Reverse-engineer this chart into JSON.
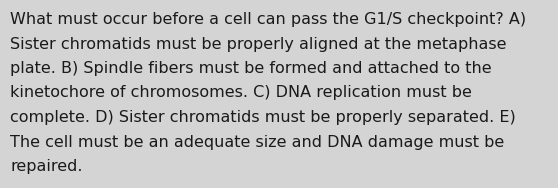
{
  "background_color": "#d4d4d4",
  "text_color": "#1a1a1a",
  "font_size": 11.5,
  "font_family": "DejaVu Sans",
  "figsize": [
    5.58,
    1.88
  ],
  "dpi": 100,
  "lines": [
    "What must occur before a cell can pass the G1/S checkpoint? A)",
    "Sister chromatids must be properly aligned at the metaphase",
    "plate. B) Spindle fibers must be formed and attached to the",
    "kinetochore of chromosomes. C) DNA replication must be",
    "complete. D) Sister chromatids must be properly separated. E)",
    "The cell must be an adequate size and DNA damage must be",
    "repaired."
  ]
}
